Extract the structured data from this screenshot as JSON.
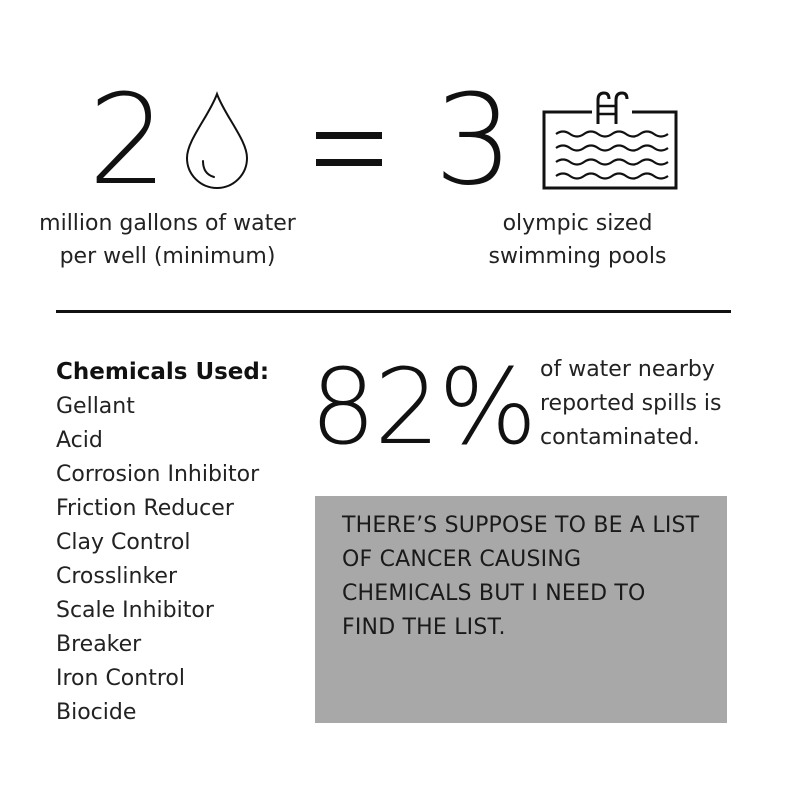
{
  "water": {
    "number": "2",
    "caption_line1": "million gallons of water",
    "caption_line2": "per well (minimum)",
    "icon": "water-drop-icon"
  },
  "equals": "=",
  "pools": {
    "number": "3",
    "caption_line1": "olympic sized",
    "caption_line2": "swimming pools",
    "icon": "swimming-pool-icon"
  },
  "chemicals": {
    "heading": "Chemicals Used:",
    "items": [
      "Gellant",
      "Acid",
      "Corrosion Inhibitor",
      "Friction Reducer",
      "Clay Control",
      "Crosslinker",
      "Scale Inhibitor",
      "Breaker",
      "Iron Control",
      "Biocide"
    ]
  },
  "contamination": {
    "percent": "82%",
    "line1": "of water nearby",
    "line2": "reported spills is",
    "line3": "contaminated."
  },
  "note": {
    "line1": "THERE’S SUPPOSE TO BE A LIST",
    "line2": "OF CANCER CAUSING",
    "line3": "CHEMICALS BUT I NEED TO",
    "line4": "FIND THE LIST.",
    "background": "#a8a8a8"
  }
}
